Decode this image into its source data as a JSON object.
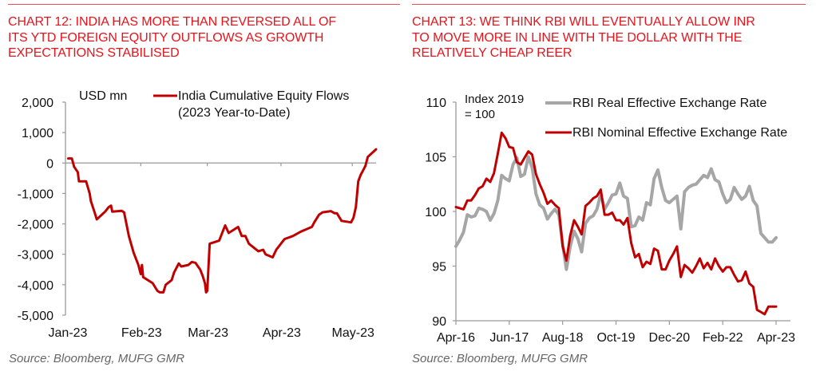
{
  "colors": {
    "title_red": "#e8141c",
    "series_red": "#c00000",
    "series_gray": "#a6a6a6",
    "axis_gray": "#999999",
    "source_gray": "#666666"
  },
  "chart_data": [
    {
      "id": "chart12",
      "type": "line",
      "title": "CHART 12: INDIA HAS MORE THAN REVERSED ALL OF ITS YTD FOREIGN EQUITY OUTFLOWS AS GROWTH EXPECTATIONS STABILISED",
      "title_lines": [
        "CHART 12: INDIA HAS MORE THAN REVERSED ALL OF",
        "ITS YTD FOREIGN EQUITY OUTFLOWS AS GROWTH",
        "EXPECTATIONS STABILISED"
      ],
      "unit_label": "USD mn",
      "ylabel": "USD mn",
      "xlabel": "",
      "ylim": [
        -5000,
        2000
      ],
      "yticks": [
        2000,
        1000,
        0,
        -1000,
        -2000,
        -3000,
        -4000,
        -5000
      ],
      "ytick_labels": [
        "2,000",
        "1,000",
        "0",
        "-1,000",
        "-2,000",
        "-3,000",
        "-4,000",
        "-5,000"
      ],
      "x_tick_labels": [
        "Jan-23",
        "Feb-23",
        "Mar-23",
        "Apr-23",
        "May-23"
      ],
      "x_tick_day": [
        1,
        32,
        60,
        91,
        121
      ],
      "xlim_day": [
        1,
        131
      ],
      "legend": {
        "placement": "top-right",
        "entries": [
          "India Cumulative Equity Flows (2023 Year-to-Date)"
        ],
        "lines": [
          "India Cumulative Equity Flows",
          "(2023 Year-to-Date)"
        ]
      },
      "source": "Source: Bloomberg, MUFG GMR",
      "grid": false,
      "series": [
        {
          "name": "India Cumulative Equity Flows (2023 Year-to-Date)",
          "color": "#c00000",
          "x_day": [
            1.5,
            3,
            4,
            5.5,
            6,
            9,
            10.5,
            11,
            12.5,
            13.5,
            17,
            18.5,
            19.5,
            20,
            24,
            25,
            27,
            29,
            31,
            32,
            32.5,
            33,
            37,
            39,
            40,
            41.5,
            42.5,
            45,
            46,
            47,
            48,
            49,
            52,
            53.5,
            55,
            57,
            58,
            59,
            59.5,
            60,
            61,
            65,
            67.5,
            69,
            73,
            74.5,
            76,
            77.5,
            81.5,
            83.5,
            84.5,
            87.5,
            89,
            92.5,
            96,
            99.5,
            104,
            105,
            107,
            108.5,
            112,
            113.5,
            114.5,
            116.5,
            120.5,
            121.5,
            122.5,
            123.5,
            124.5,
            125.5,
            126.5,
            127.5,
            131
          ],
          "values": [
            150,
            150,
            -130,
            -300,
            -600,
            -600,
            -1000,
            -1250,
            -1600,
            -1850,
            -1600,
            -1450,
            -1400,
            -1600,
            -1570,
            -1620,
            -2400,
            -2950,
            -3350,
            -3650,
            -3350,
            -3750,
            -3950,
            -4200,
            -4250,
            -4250,
            -4000,
            -3850,
            -3600,
            -3450,
            -3300,
            -3400,
            -3350,
            -3250,
            -3280,
            -3500,
            -3700,
            -3950,
            -4250,
            -4200,
            -2650,
            -2550,
            -2050,
            -2300,
            -2100,
            -2400,
            -2400,
            -2650,
            -2900,
            -2850,
            -3000,
            -3100,
            -2850,
            -2500,
            -2400,
            -2250,
            -2100,
            -1950,
            -1700,
            -1620,
            -1580,
            -1650,
            -1650,
            -1900,
            -1950,
            -1800,
            -1450,
            -600,
            -400,
            -250,
            -100,
            200,
            450,
            800
          ]
        }
      ]
    },
    {
      "id": "chart13",
      "type": "line",
      "title": "CHART 13: WE THINK RBI WILL EVENTUALLY ALLOW INR TO MOVE MORE IN LINE WITH THE DOLLAR WITH THE RELATIVELY CHEAP REER",
      "title_lines": [
        "CHART 13: WE THINK RBI WILL EVENTUALLY ALLOW INR",
        "TO MOVE MORE IN LINE WITH THE DOLLAR WITH THE",
        "RELATIVELY CHEAP REER"
      ],
      "unit_label_lines": [
        "Index 2019",
        "= 100"
      ],
      "ylabel": "Index 2019 = 100",
      "xlabel": "",
      "ylim": [
        90,
        110
      ],
      "yticks": [
        110,
        105,
        100,
        95,
        90
      ],
      "ytick_labels": [
        "110",
        "105",
        "100",
        "95",
        "90"
      ],
      "x_tick_labels": [
        "Apr-16",
        "Jun-17",
        "Aug-18",
        "Oct-19",
        "Dec-20",
        "Feb-22",
        "Apr-23"
      ],
      "x_tick_month": [
        0,
        14,
        28,
        42,
        56,
        70,
        84
      ],
      "xlim_month": [
        0,
        88
      ],
      "legend": {
        "placement": "top-right",
        "entries": [
          "RBI Real Effective Exchange Rate",
          "RBI Nominal Effective Exchange Rate"
        ]
      },
      "source": "Source: Bloomberg, MUFG GMR",
      "grid": false,
      "series": [
        {
          "name": "RBI Real Effective Exchange Rate",
          "color": "#a6a6a6",
          "x_month": [
            0,
            1,
            2,
            3,
            4,
            5,
            6,
            7,
            8,
            9,
            10,
            11,
            12,
            13,
            14,
            15,
            16,
            17,
            18,
            19,
            20,
            21,
            22,
            23,
            24,
            25,
            26,
            27,
            28,
            29,
            30,
            31,
            32,
            33,
            34,
            35,
            36,
            37,
            38,
            39,
            40,
            41,
            42,
            43,
            44,
            45,
            46,
            47,
            48,
            49,
            50,
            51,
            52,
            53,
            54,
            55,
            56,
            57,
            58,
            59,
            60,
            61,
            62,
            63,
            64,
            65,
            66,
            67,
            68,
            69,
            70,
            71,
            72,
            73,
            74,
            75,
            76,
            77,
            78,
            79,
            80,
            81,
            82,
            83,
            84
          ],
          "values": [
            96.8,
            97.4,
            98.1,
            99.7,
            99.5,
            99.6,
            100.3,
            100.2,
            100.0,
            99.2,
            99.8,
            101.0,
            103.3,
            103.0,
            102.8,
            104.3,
            104.9,
            103.2,
            103.4,
            105.0,
            104.0,
            101.6,
            100.6,
            100.3,
            99.3,
            99.8,
            100.2,
            99.7,
            97.0,
            94.7,
            96.8,
            98.2,
            97.5,
            96.3,
            98.9,
            99.4,
            99.6,
            100.2,
            101.6,
            100.2,
            100.8,
            101.5,
            101.6,
            102.6,
            101.4,
            101.2,
            98.6,
            98.7,
            99.5,
            99.2,
            100.8,
            100.6,
            103.0,
            103.8,
            102.2,
            101.0,
            100.8,
            101.1,
            101.4,
            98.4,
            101.8,
            102.2,
            102.4,
            102.5,
            102.9,
            103.3,
            103.1,
            103.9,
            102.9,
            102.7,
            101.6,
            100.8,
            101.1,
            102.2,
            101.6,
            101.1,
            101.4,
            102.3,
            101.0,
            100.5,
            98.0,
            97.6,
            97.2,
            97.2,
            97.6
          ]
        },
        {
          "name": "RBI Nominal Effective Exchange Rate",
          "color": "#c00000",
          "x_month": [
            0,
            1,
            2,
            3,
            4,
            5,
            6,
            7,
            8,
            9,
            10,
            11,
            12,
            13,
            14,
            15,
            16,
            17,
            18,
            19,
            20,
            21,
            22,
            23,
            24,
            25,
            26,
            27,
            28,
            29,
            30,
            31,
            32,
            33,
            34,
            35,
            36,
            37,
            38,
            39,
            40,
            41,
            42,
            43,
            44,
            45,
            46,
            47,
            48,
            49,
            50,
            51,
            52,
            53,
            54,
            55,
            56,
            57,
            58,
            59,
            60,
            61,
            62,
            63,
            64,
            65,
            66,
            67,
            68,
            69,
            70,
            71,
            72,
            73,
            74,
            75,
            76,
            77,
            78,
            79,
            80,
            81,
            82,
            83,
            84
          ],
          "values": [
            100.4,
            100.3,
            100.2,
            101.0,
            101.0,
            101.5,
            102.1,
            102.3,
            103.0,
            102.7,
            103.5,
            105.3,
            107.2,
            106.7,
            105.9,
            105.8,
            104.5,
            104.3,
            104.9,
            105.5,
            105.2,
            103.4,
            102.5,
            101.7,
            100.7,
            101.0,
            100.6,
            100.3,
            96.8,
            95.5,
            97.8,
            99.2,
            98.6,
            97.9,
            100.5,
            100.8,
            101.2,
            101.4,
            102.0,
            99.7,
            99.7,
            99.9,
            99.2,
            99.2,
            98.8,
            99.4,
            97.1,
            95.8,
            96.1,
            94.9,
            95.4,
            95.2,
            96.6,
            96.4,
            94.7,
            94.7,
            95.5,
            96.1,
            96.8,
            94.0,
            95.1,
            94.8,
            94.4,
            95.0,
            95.7,
            94.8,
            95.3,
            94.7,
            95.7,
            95.0,
            94.5,
            94.9,
            94.9,
            94.2,
            93.6,
            93.7,
            94.5,
            93.4,
            93.1,
            91.0,
            90.8,
            90.6,
            91.3,
            91.3,
            91.3
          ]
        }
      ]
    }
  ]
}
